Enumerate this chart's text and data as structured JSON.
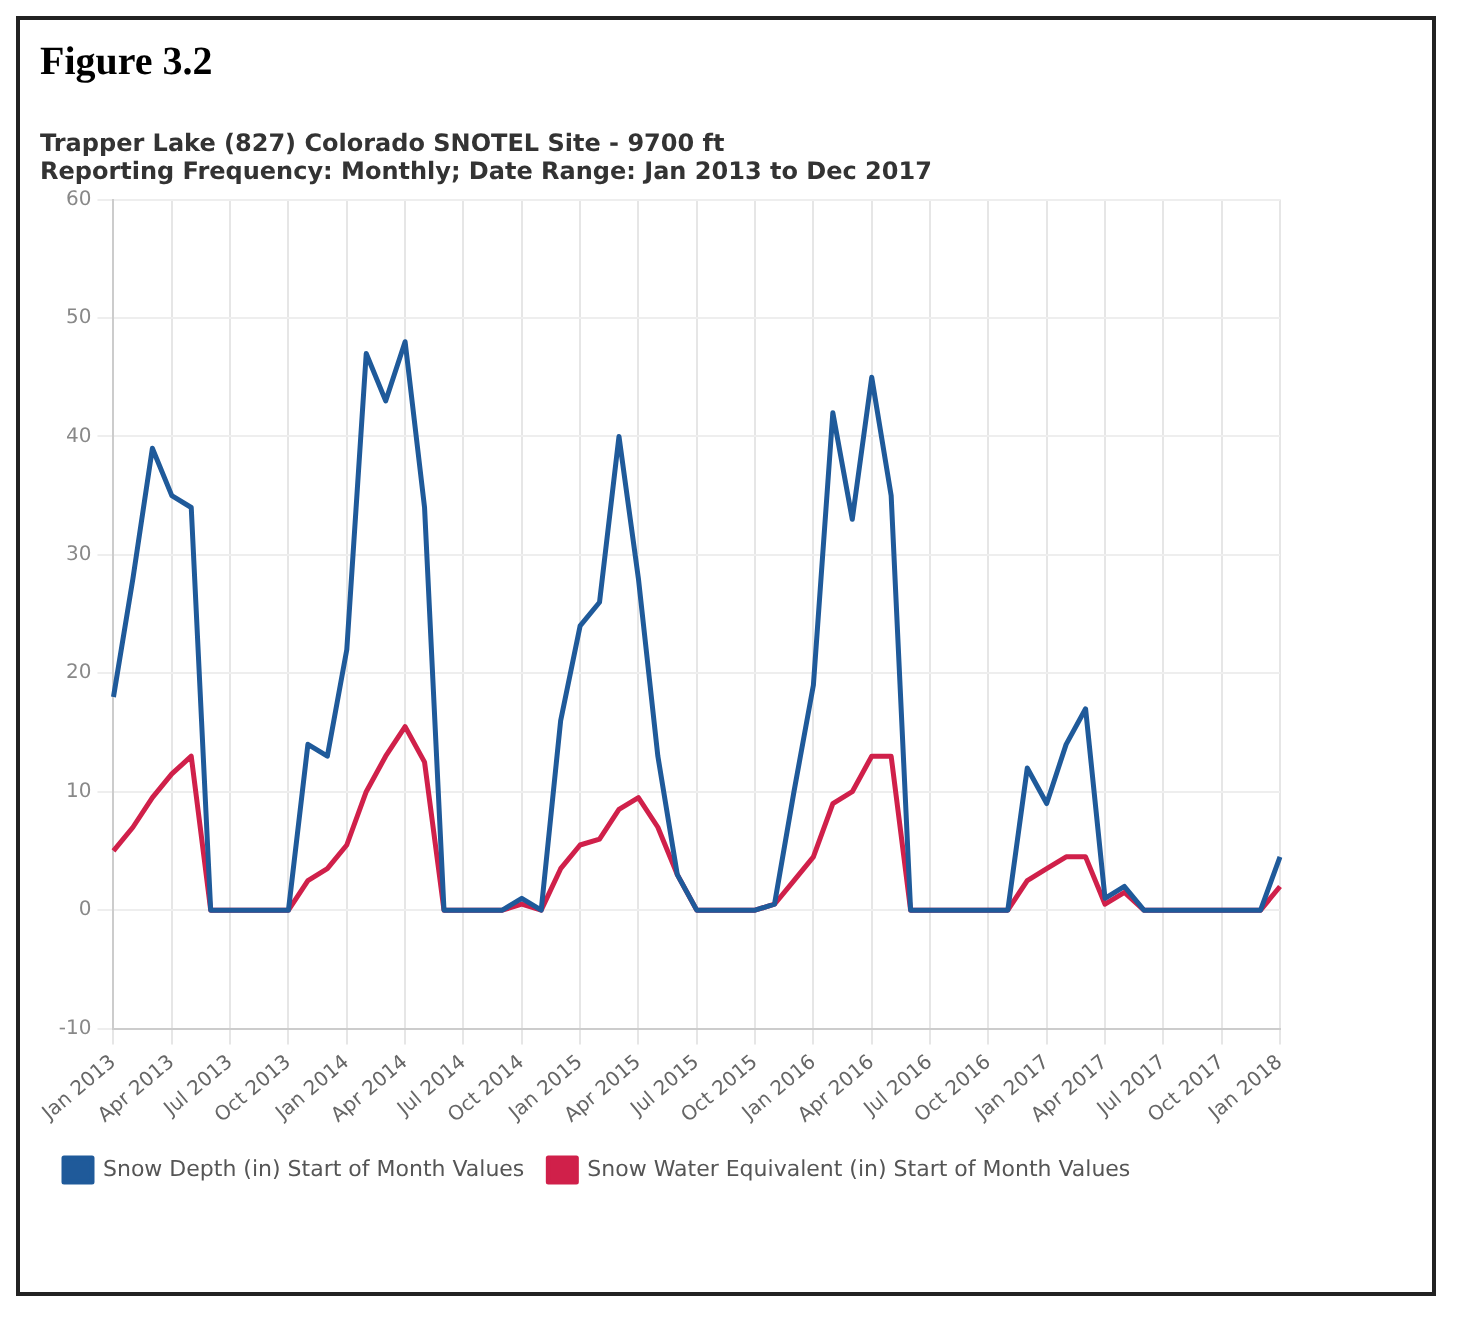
{
  "chart_data": {
    "type": "line",
    "title": "Trapper Lake (827) Colorado SNOTEL Site - 9700 ft",
    "subtitle": "Reporting Frequency: Monthly; Date Range: Jan 2013 to Dec 2017",
    "annotations": [
      "Figure 3.2"
    ],
    "categories": [
      "Jan 2013",
      null,
      null,
      "Apr 2013",
      null,
      null,
      "Jul 2013",
      null,
      null,
      "Oct 2013",
      null,
      null,
      "Jan 2014",
      null,
      null,
      "Apr 2014",
      null,
      null,
      "Jul 2014",
      null,
      null,
      "Oct 2014",
      null,
      null,
      "Jan 2015",
      null,
      null,
      "Apr 2015",
      null,
      null,
      "Jul 2015",
      null,
      null,
      "Oct 2015",
      null,
      null,
      "Jan 2016",
      null,
      null,
      "Apr 2016",
      null,
      null,
      "Jul 2016",
      null,
      null,
      "Oct 2016",
      null,
      null,
      "Jan 2017",
      null,
      null,
      "Apr 2017",
      null,
      null,
      "Jul 2017",
      null,
      null,
      "Oct 2017",
      null,
      null,
      "Jan 2018"
    ],
    "series": [
      {
        "name": "Snow Depth (in) Start of Month Values",
        "color": "#1f5a9a",
        "values": [
          18,
          28,
          39,
          35,
          34,
          0,
          0,
          0,
          0,
          0,
          14,
          13,
          22,
          47,
          43,
          48,
          34,
          0,
          0,
          0,
          0,
          1,
          0,
          16,
          24,
          26,
          40,
          28,
          13,
          3,
          0,
          0,
          0,
          0,
          0.5,
          10,
          19,
          42,
          33,
          45,
          35,
          0,
          0,
          0,
          0,
          0,
          0,
          12,
          9,
          14,
          17,
          1,
          2,
          0,
          0,
          0,
          0,
          0,
          0,
          0,
          4.5
        ]
      },
      {
        "name": "Snow Water Equivalent (in) Start of Month Values",
        "color": "#d0204a",
        "values": [
          5,
          7,
          9.5,
          11.5,
          13,
          0,
          0,
          0,
          0,
          0,
          2.5,
          3.5,
          5.5,
          10,
          13,
          15.5,
          12.5,
          0,
          0,
          0,
          0,
          0.5,
          0,
          3.5,
          5.5,
          6,
          8.5,
          9.5,
          7,
          3,
          0,
          0,
          0,
          0,
          0.5,
          2.5,
          4.5,
          9,
          10,
          13,
          13,
          0,
          0,
          0,
          0,
          0,
          0,
          2.5,
          3.5,
          4.5,
          4.5,
          0.5,
          1.5,
          0,
          0,
          0,
          0,
          0,
          0,
          0,
          2
        ]
      }
    ],
    "ylim": [
      -10,
      60
    ],
    "yticks": [
      -10,
      0,
      10,
      20,
      30,
      40,
      50,
      60
    ],
    "grid": true,
    "legend": "bottom",
    "marker": "none",
    "line_style": "solid"
  }
}
